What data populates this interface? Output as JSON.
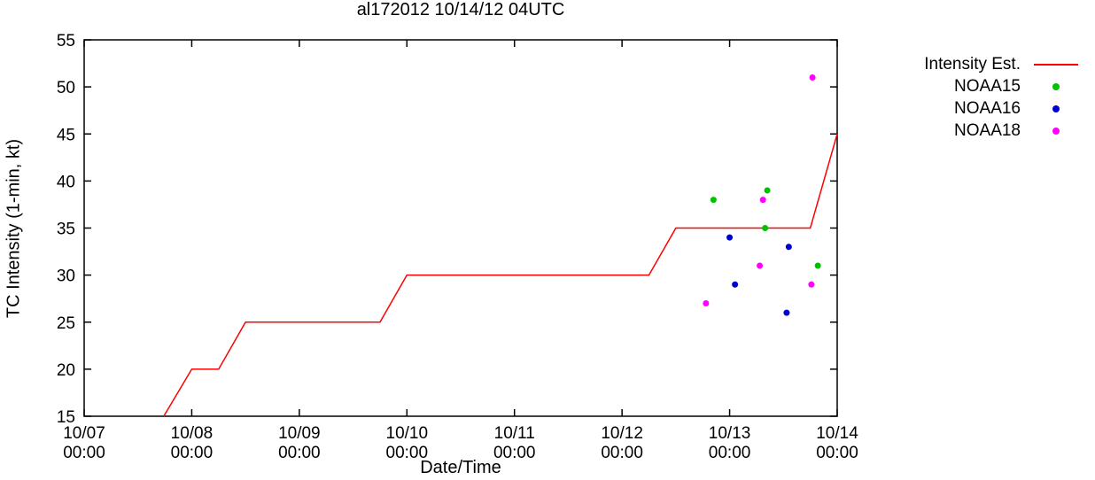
{
  "chart_data": {
    "type": "line+scatter",
    "title": "al172012 10/14/12 04UTC",
    "xlabel": "Date/Time",
    "ylabel": "TC Intensity (1-min, kt)",
    "grid": false,
    "legend_position": "outside-top-right",
    "x_axis": {
      "range": [
        0,
        7
      ],
      "unit": "days since 10/07 00:00",
      "tick_labels": [
        {
          "day": 0,
          "date": "10/07",
          "time": "00:00"
        },
        {
          "day": 1,
          "date": "10/08",
          "time": "00:00"
        },
        {
          "day": 2,
          "date": "10/09",
          "time": "00:00"
        },
        {
          "day": 3,
          "date": "10/10",
          "time": "00:00"
        },
        {
          "day": 4,
          "date": "10/11",
          "time": "00:00"
        },
        {
          "day": 5,
          "date": "10/12",
          "time": "00:00"
        },
        {
          "day": 6,
          "date": "10/13",
          "time": "00:00"
        },
        {
          "day": 7,
          "date": "10/14",
          "time": "00:00"
        }
      ]
    },
    "y_axis": {
      "range": [
        15,
        55
      ],
      "ticks": [
        15,
        20,
        25,
        30,
        35,
        40,
        45,
        50,
        55
      ]
    },
    "series": [
      {
        "name": "Intensity Est.",
        "type": "line",
        "color": "#ff0000",
        "points": [
          [
            0.74,
            15
          ],
          [
            1.0,
            20
          ],
          [
            1.25,
            20
          ],
          [
            1.5,
            25
          ],
          [
            2.75,
            25
          ],
          [
            3.0,
            30
          ],
          [
            5.25,
            30
          ],
          [
            5.5,
            35
          ],
          [
            6.75,
            35
          ],
          [
            7.0,
            45
          ]
        ]
      },
      {
        "name": "NOAA15",
        "type": "scatter",
        "color": "#00c000",
        "points": [
          [
            5.85,
            38
          ],
          [
            6.35,
            39
          ],
          [
            6.33,
            35
          ],
          [
            6.82,
            31
          ]
        ]
      },
      {
        "name": "NOAA16",
        "type": "scatter",
        "color": "#0000cc",
        "points": [
          [
            6.0,
            34
          ],
          [
            6.05,
            29
          ],
          [
            6.55,
            33
          ],
          [
            6.53,
            26
          ]
        ]
      },
      {
        "name": "NOAA18",
        "type": "scatter",
        "color": "#ff00ff",
        "points": [
          [
            5.78,
            27
          ],
          [
            6.31,
            38
          ],
          [
            6.28,
            31
          ],
          [
            6.77,
            51
          ],
          [
            6.76,
            29
          ]
        ]
      }
    ]
  }
}
